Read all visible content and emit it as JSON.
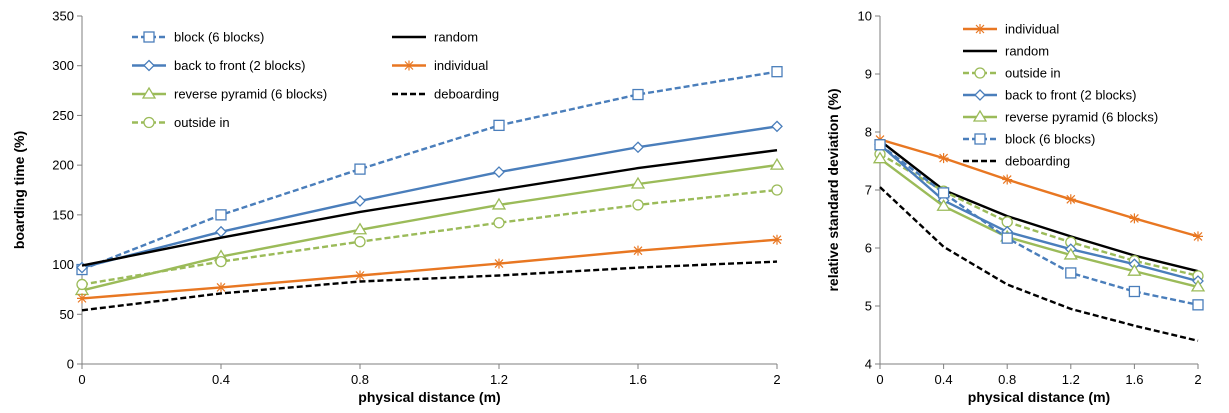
{
  "chart_data": [
    {
      "type": "line",
      "xlabel": "physical distance (m)",
      "ylabel": "boarding time (%)",
      "x": [
        0,
        0.4,
        0.8,
        1.2,
        1.6,
        2
      ],
      "x_ticks": [
        "0",
        "0.4",
        "0.8",
        "1.2",
        "1.6",
        "2"
      ],
      "ylim": [
        0,
        350
      ],
      "y_ticks": [
        "0",
        "50",
        "100",
        "150",
        "200",
        "250",
        "300",
        "350"
      ],
      "legend_columns": 2,
      "series": [
        {
          "name": "block (6 blocks)",
          "color": "#4a7ebb",
          "dash": "dashed",
          "marker": "square",
          "values": [
            95,
            150,
            196,
            240,
            271,
            294
          ]
        },
        {
          "name": "back to front (2 blocks)",
          "color": "#4a7ebb",
          "dash": "solid",
          "marker": "diamond",
          "values": [
            97,
            133,
            164,
            193,
            218,
            239
          ]
        },
        {
          "name": "reverse pyramid (6 blocks)",
          "color": "#9bbb59",
          "dash": "solid",
          "marker": "triangle",
          "values": [
            74,
            108,
            135,
            160,
            181,
            200
          ]
        },
        {
          "name": "outside in",
          "color": "#9bbb59",
          "dash": "dashed",
          "marker": "circle",
          "values": [
            80,
            103,
            123,
            142,
            160,
            175
          ]
        },
        {
          "name": "random",
          "color": "#000000",
          "dash": "solid",
          "marker": "none",
          "values": [
            99,
            127,
            153,
            175,
            197,
            215
          ]
        },
        {
          "name": "individual",
          "color": "#e87722",
          "dash": "solid",
          "marker": "star",
          "values": [
            66,
            77,
            89,
            101,
            114,
            125
          ]
        },
        {
          "name": "deboarding",
          "color": "#000000",
          "dash": "dashed",
          "marker": "none",
          "values": [
            54,
            71,
            83,
            89,
            97,
            103
          ]
        }
      ]
    },
    {
      "type": "line",
      "xlabel": "physical distance (m)",
      "ylabel": "relative standard deviation (%)",
      "x": [
        0,
        0.4,
        0.8,
        1.2,
        1.6,
        2
      ],
      "x_ticks": [
        "0",
        "0.4",
        "0.8",
        "1.2",
        "1.6",
        "2"
      ],
      "ylim": [
        4,
        10
      ],
      "y_ticks": [
        "4",
        "5",
        "6",
        "7",
        "8",
        "9",
        "10"
      ],
      "legend_columns": 1,
      "series": [
        {
          "name": "individual",
          "color": "#e87722",
          "dash": "solid",
          "marker": "star",
          "values": [
            7.87,
            7.55,
            7.18,
            6.84,
            6.51,
            6.2
          ]
        },
        {
          "name": "random",
          "color": "#000000",
          "dash": "solid",
          "marker": "none",
          "values": [
            7.85,
            7.0,
            6.55,
            6.2,
            5.87,
            5.6
          ]
        },
        {
          "name": "outside in",
          "color": "#9bbb59",
          "dash": "dashed",
          "marker": "circle",
          "values": [
            7.62,
            6.98,
            6.45,
            6.1,
            5.78,
            5.52
          ]
        },
        {
          "name": "back to front (2 blocks)",
          "color": "#4a7ebb",
          "dash": "solid",
          "marker": "diamond",
          "values": [
            7.78,
            6.82,
            6.28,
            5.98,
            5.72,
            5.43
          ]
        },
        {
          "name": "reverse pyramid (6 blocks)",
          "color": "#9bbb59",
          "dash": "solid",
          "marker": "triangle",
          "values": [
            7.54,
            6.72,
            6.19,
            5.88,
            5.6,
            5.33
          ]
        },
        {
          "name": "block (6 blocks)",
          "color": "#4a7ebb",
          "dash": "dashed",
          "marker": "square",
          "values": [
            7.78,
            6.95,
            6.17,
            5.57,
            5.25,
            5.02
          ]
        },
        {
          "name": "deboarding",
          "color": "#000000",
          "dash": "dashed",
          "marker": "none",
          "values": [
            7.05,
            6.02,
            5.37,
            4.95,
            4.66,
            4.4
          ]
        }
      ]
    }
  ]
}
